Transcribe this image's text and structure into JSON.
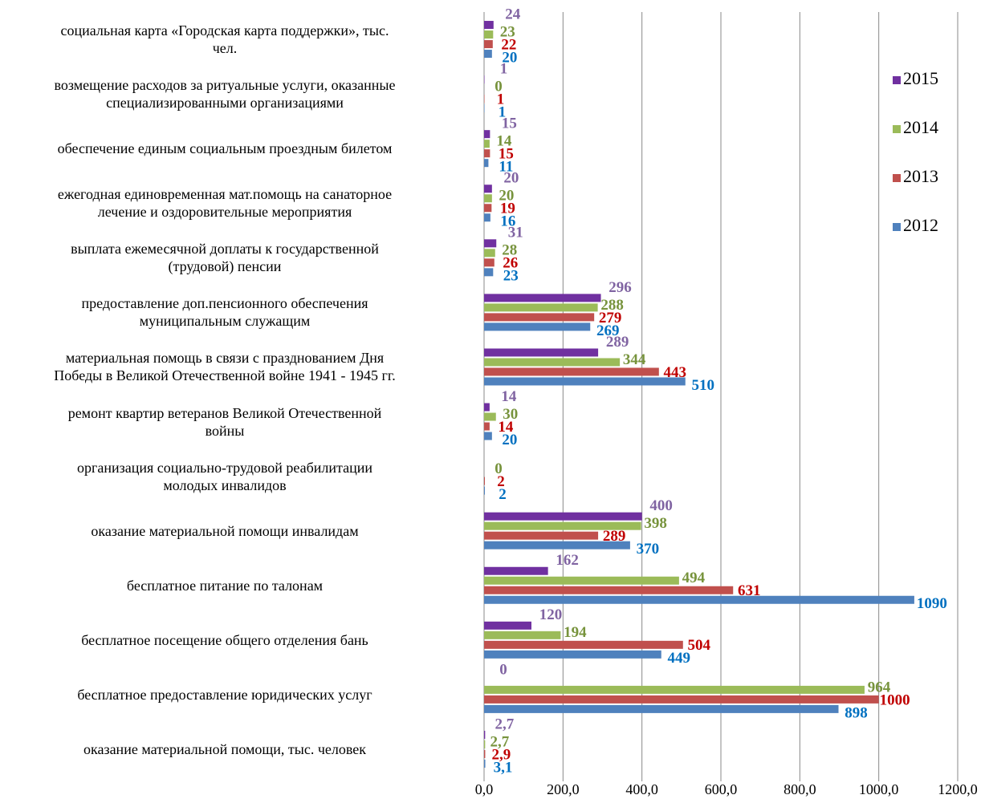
{
  "chart_data": {
    "type": "bar",
    "orientation": "horizontal",
    "categories": [
      "социальная карта «Городская карта поддержки», тыс.\nчел.",
      "возмещение расходов за ритуальные услуги, оказанные\nспециализированными организациями",
      "обеспечение единым социальным проездным билетом",
      "ежегодная единовременная мат.помощь на санаторное\nлечение и оздоровительные мероприятия",
      "выплата ежемесячной доплаты к государственной\n(трудовой) пенсии",
      "предоставление доп.пенсионного обеспечения\nмуниципальным служащим",
      "материальная помощь в связи с празднованием Дня\nПобеды в Великой Отечественной войне 1941 - 1945 гг.",
      "ремонт квартир ветеранов Великой Отечественной\nвойны",
      "организация социально-трудовой реабилитации\nмолодых инвалидов",
      "оказание материальной помощи инвалидам",
      "бесплатное питание по талонам",
      "бесплатное посещение общего отделения бань",
      "бесплатное предоставление юридических услуг",
      "оказание материальной помощи, тыс. человек"
    ],
    "series": [
      {
        "name": "2012",
        "color": "#4f81bd",
        "label_color": "#0070c0",
        "values": [
          20,
          1,
          11,
          16,
          23,
          269,
          510,
          20,
          2,
          370,
          1090,
          449,
          898,
          3.1
        ],
        "value_labels": [
          "20",
          "1",
          "11",
          "16",
          "23",
          "269",
          "510",
          "20",
          "2",
          "370",
          "1090",
          "449",
          "898",
          "3,1"
        ]
      },
      {
        "name": "2013",
        "color": "#c0504d",
        "label_color": "#c00000",
        "values": [
          22,
          1,
          15,
          19,
          26,
          279,
          443,
          14,
          2,
          289,
          631,
          504,
          1000,
          2.9
        ],
        "value_labels": [
          "22",
          "1",
          "15",
          "19",
          "26",
          "279",
          "443",
          "14",
          "2",
          "289",
          "631",
          "504",
          "1000",
          "2,9"
        ]
      },
      {
        "name": "2014",
        "color": "#9bbb59",
        "label_color": "#77933c",
        "values": [
          23,
          0,
          14,
          20,
          28,
          288,
          344,
          30,
          0,
          398,
          494,
          194,
          964,
          2.7
        ],
        "value_labels": [
          "23",
          "0",
          "14",
          "20",
          "28",
          "288",
          "344",
          "30",
          "0",
          "398",
          "494",
          "194",
          "964",
          "2,7"
        ]
      },
      {
        "name": "2015",
        "color": "#7030a0",
        "label_color": "#8064a2",
        "values": [
          24,
          1,
          15,
          20,
          31,
          296,
          289,
          14,
          null,
          400,
          162,
          120,
          0,
          2.7
        ],
        "value_labels": [
          "24",
          "1",
          "15",
          "20",
          "31",
          "296",
          "289",
          "14",
          null,
          "400",
          "162",
          "120",
          "0",
          "2,7"
        ]
      }
    ],
    "xlim": [
      0,
      1200
    ],
    "xticks": [
      {
        "value": 0,
        "label": "0,0"
      },
      {
        "value": 200,
        "label": "200,0"
      },
      {
        "value": 400,
        "label": "400,0"
      },
      {
        "value": 600,
        "label": "600,0"
      },
      {
        "value": 800,
        "label": "800,0"
      },
      {
        "value": 1000,
        "label": "1000,0"
      },
      {
        "value": 1200,
        "label": "1200,0"
      }
    ],
    "grid": true,
    "legend": "right"
  }
}
